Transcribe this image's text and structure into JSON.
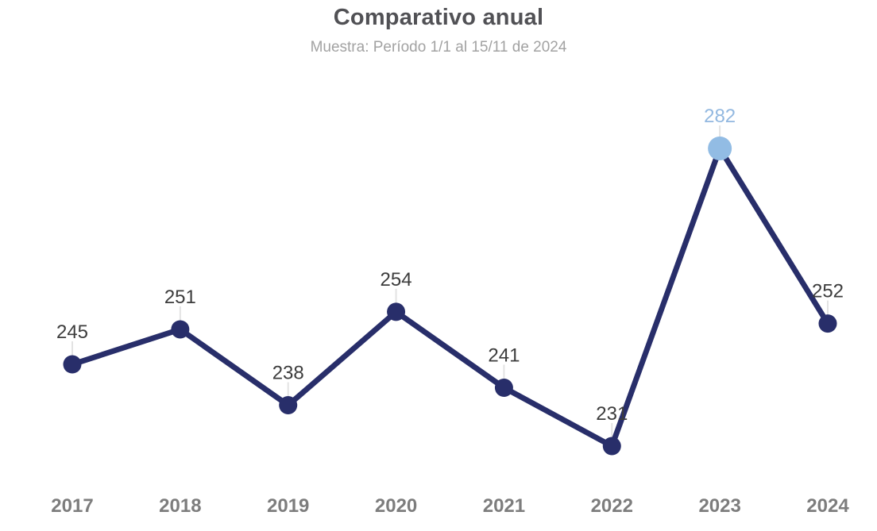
{
  "header": {
    "title": "Comparativo anual",
    "subtitle": "Muestra: Período 1/1 al 15/11 de 2024"
  },
  "colors": {
    "line": "#282e6a",
    "dot": "#282e6a",
    "highlight_dot": "#92bce4",
    "highlight_label": "#92b8e0",
    "value_label": "#3c3c3c",
    "axis_label": "#7d7d7d",
    "connector": "#e3e3e3",
    "title": "#515155",
    "subtitle": "#a2a2a2",
    "background": "#ffffff"
  },
  "chart_data": {
    "type": "line",
    "title": "Comparativo anual",
    "subtitle": "Muestra: Período 1/1 al 15/11 de 2024",
    "categories": [
      "2017",
      "2018",
      "2019",
      "2020",
      "2021",
      "2022",
      "2023",
      "2024"
    ],
    "values": [
      245,
      251,
      238,
      254,
      241,
      231,
      282,
      252
    ],
    "highlight_index": 6,
    "highlight_category": "2023",
    "highlight_value": 282,
    "ylim": [
      225,
      292
    ],
    "grid": false,
    "legend": false,
    "data_labels": true
  }
}
